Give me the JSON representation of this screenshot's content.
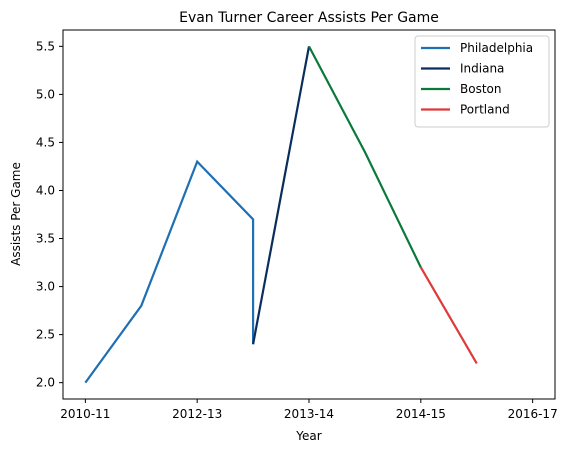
{
  "chart_data": {
    "type": "line",
    "title": "Evan Turner Career Assists Per Game",
    "xlabel": "Year",
    "ylabel": "Assists Per Game",
    "x_tick_labels": [
      "2010-11",
      "2012-13",
      "2013-14",
      "2014-15",
      "2016-17"
    ],
    "x_tick_positions": [
      0,
      1,
      2,
      3,
      4
    ],
    "y_ticks": [
      2.0,
      2.5,
      3.0,
      3.5,
      4.0,
      4.5,
      5.0,
      5.5
    ],
    "y_tick_labels": [
      "2.0",
      "2.5",
      "3.0",
      "3.5",
      "4.0",
      "4.5",
      "5.0",
      "5.5"
    ],
    "xlim": [
      -0.2,
      4.2
    ],
    "ylim": [
      1.83,
      5.67
    ],
    "grid": false,
    "legend_position": "top-right",
    "series": [
      {
        "name": "Philadelphia",
        "color": "#1f6fb5",
        "x": [
          0,
          0.5,
          1,
          1.5,
          1.5
        ],
        "y": [
          2.0,
          2.8,
          4.3,
          3.7,
          2.4
        ]
      },
      {
        "name": "Indiana",
        "color": "#0b2d5c",
        "x": [
          1.5,
          2.0
        ],
        "y": [
          2.4,
          5.5
        ]
      },
      {
        "name": "Boston",
        "color": "#0a7a3a",
        "x": [
          2.0,
          2.5,
          3.0
        ],
        "y": [
          5.5,
          4.4,
          3.2
        ]
      },
      {
        "name": "Portland",
        "color": "#dd3a3a",
        "x": [
          3.0,
          3.5
        ],
        "y": [
          3.2,
          2.2
        ]
      }
    ]
  }
}
